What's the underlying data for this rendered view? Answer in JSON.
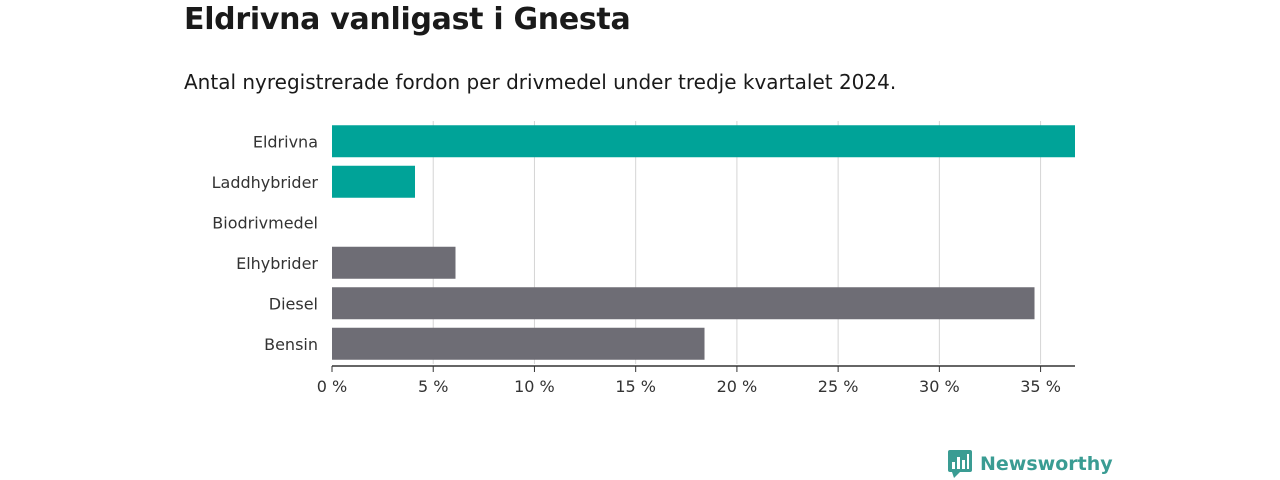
{
  "title": "Eldrivna vanligast i Gnesta",
  "subtitle": "Antal nyregistrerade fordon per drivmedel under tredje kvartalet 2024.",
  "brand": {
    "name": "Newsworthy"
  },
  "colors": {
    "highlight": "#00a398",
    "default": "#6e6d75",
    "brand": "#3a9c93"
  },
  "chart_data": {
    "type": "bar",
    "orientation": "horizontal",
    "categories": [
      "Eldrivna",
      "Laddhybrider",
      "Biodrivmedel",
      "Elhybrider",
      "Diesel",
      "Bensin"
    ],
    "values": [
      36.7,
      4.1,
      0,
      6.1,
      34.7,
      18.4
    ],
    "highlight": [
      true,
      true,
      false,
      false,
      false,
      false
    ],
    "x_ticks": [
      0,
      5,
      10,
      15,
      20,
      25,
      30,
      35
    ],
    "x_tick_labels": [
      "0 %",
      "5 %",
      "10 %",
      "15 %",
      "20 %",
      "25 %",
      "30 %",
      "35 %"
    ],
    "xlim": [
      0,
      36.7
    ],
    "grid": true
  }
}
